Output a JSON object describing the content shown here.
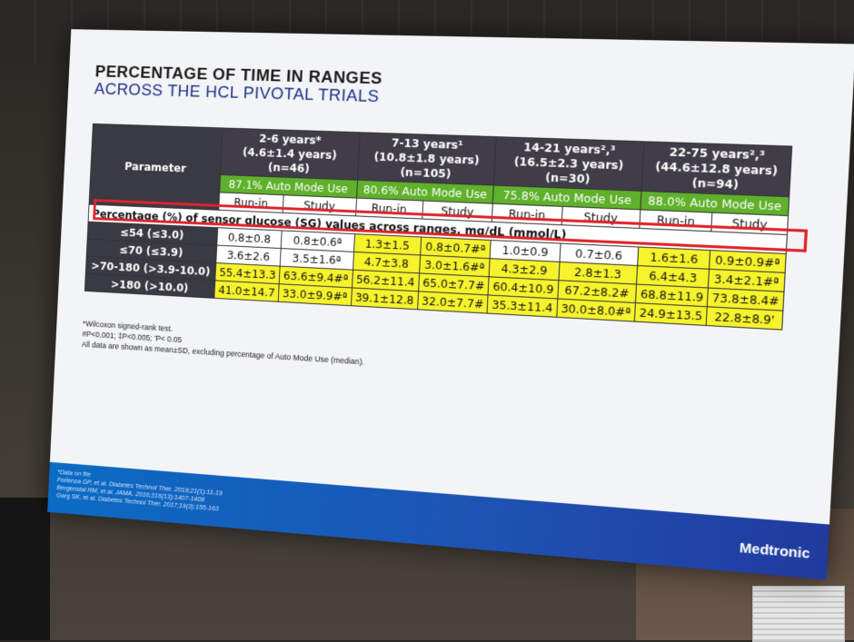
{
  "slide": {
    "title_line1": "PERCENTAGE OF TIME IN RANGES",
    "title_line2": "ACROSS THE HCL PIVOTAL TRIALS",
    "table": {
      "parameter_header": "Parameter",
      "groups": [
        {
          "name": "2-6 years*",
          "age": "(4.6±1.4 years)",
          "n": "(n=46)",
          "auto_mode": "87.1% Auto Mode Use"
        },
        {
          "name": "7-13 years¹",
          "age": "(10.8±1.8 years)",
          "n": "(n=105)",
          "auto_mode": "80.6% Auto Mode Use"
        },
        {
          "name": "14-21 years²,³",
          "age": "(16.5±2.3 years)",
          "n": "(n=30)",
          "auto_mode": "75.8% Auto Mode Use"
        },
        {
          "name": "22-75 years²,³",
          "age": "(44.6±12.8 years)",
          "n": "(n=94)",
          "auto_mode": "88.0% Auto Mode Use"
        }
      ],
      "run_in_label": "Run-in",
      "study_label": "Study",
      "percentage_row": "Percentage (%) of sensor glucose (SG) values across ranges, mg/dL (mmol/L)",
      "rows": [
        {
          "label": "≤54 (≤3.0)",
          "values": [
            "0.8±0.8",
            "0.8±0.6ª",
            "1.3±1.5",
            "0.8±0.7#ª",
            "1.0±0.9",
            "0.7±0.6",
            "1.6±1.6",
            "0.9±0.9#ª"
          ]
        },
        {
          "label": "≤70 (≤3.9)",
          "values": [
            "3.6±2.6",
            "3.5±1.6ª",
            "4.7±3.8",
            "3.0±1.6#ª",
            "4.3±2.9",
            "2.8±1.3",
            "6.4±4.3",
            "3.4±2.1#ª"
          ]
        },
        {
          "label": ">70-180 (>3.9-10.0)",
          "values": [
            "55.4±13.3",
            "63.6±9.4#ª",
            "56.2±11.4",
            "65.0±7.7#",
            "60.4±10.9",
            "67.2±8.2#",
            "68.8±11.9",
            "73.8±8.4#"
          ]
        },
        {
          "label": ">180 (>10.0)",
          "values": [
            "41.0±14.7",
            "33.0±9.9#ª",
            "39.1±12.8",
            "32.0±7.7#",
            "35.3±11.4",
            "30.0±8.0#ª",
            "24.9±13.5",
            "22.8±8.9'"
          ]
        }
      ]
    },
    "notes": [
      "*Wilcoxon signed-rank test.",
      "#P<0.001; ‡P<0.005; 'P< 0.05",
      "All data are shown as mean±SD, excluding percentage of Auto Mode Use (median)."
    ],
    "references": [
      "*Data on file",
      "Forlenza GP, et al. Diabetes Technol Ther. 2019;21(1):11-19",
      "Bergenstal RM, et al. JAMA. 2016;316(13):1407-1408",
      "Garg SK, et al. Diabetes Technol Ther. 2017;19(3):155-163"
    ],
    "logo": "Medtronic"
  },
  "colors": {
    "auto_mode_green": "#5fb02b",
    "highlight_yellow": "#f6f32c",
    "header_dark": "#3a3a44",
    "highlight_red": "#e0232a",
    "footer_blue": "#1e52b3"
  }
}
